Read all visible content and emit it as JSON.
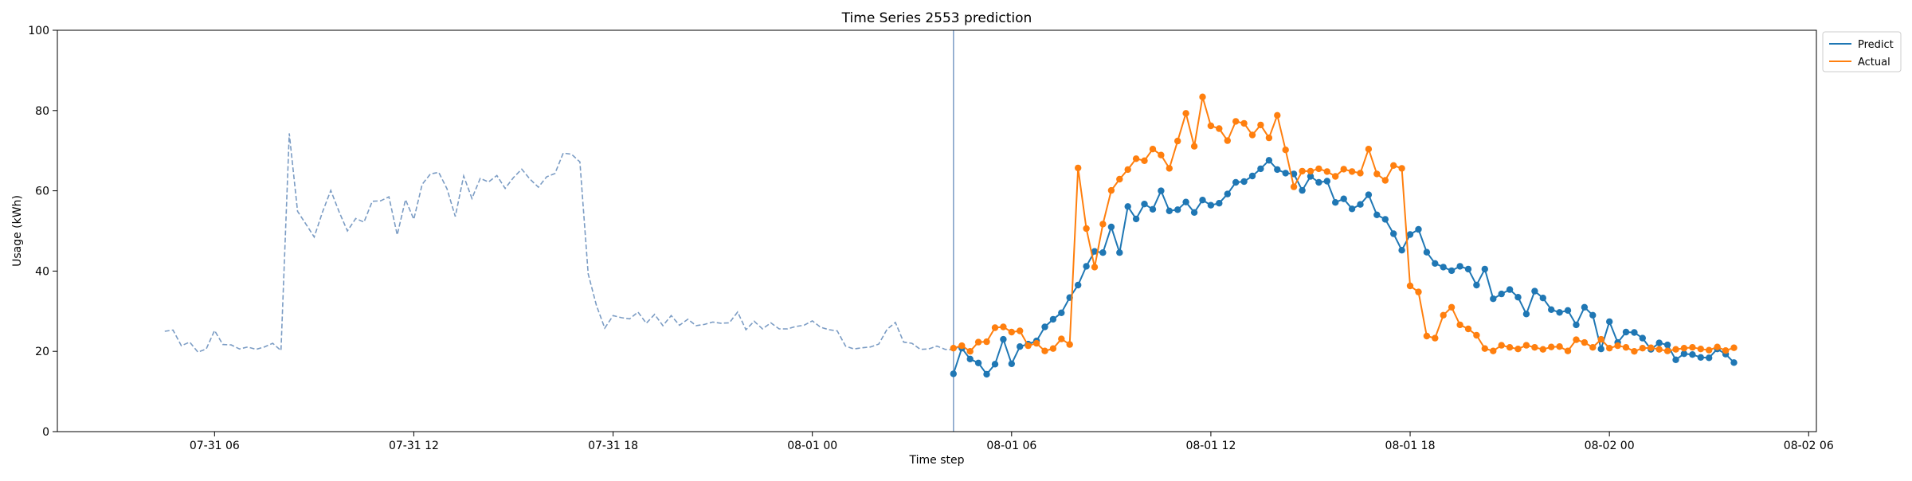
{
  "chart_data": {
    "type": "line",
    "title": "Time Series 2553 prediction",
    "xlabel": "Time step",
    "ylabel": "Usage (kWh)",
    "ylim": [
      0,
      100
    ],
    "xlim": [
      "07-31 01:16",
      "08-02 06:14"
    ],
    "yticks": [
      0,
      20,
      40,
      60,
      80,
      100
    ],
    "xticks": [
      {
        "at": "07-31 06:00",
        "label": "07-31 06"
      },
      {
        "at": "07-31 12:00",
        "label": "07-31 12"
      },
      {
        "at": "07-31 18:00",
        "label": "07-31 18"
      },
      {
        "at": "08-01 00:00",
        "label": "08-01 00"
      },
      {
        "at": "08-01 06:00",
        "label": "08-01 06"
      },
      {
        "at": "08-01 12:00",
        "label": "08-01 12"
      },
      {
        "at": "08-01 18:00",
        "label": "08-01 18"
      },
      {
        "at": "08-02 00:00",
        "label": "08-02 00"
      },
      {
        "at": "08-02 06:00",
        "label": "08-02 06"
      }
    ],
    "grid": false,
    "legend_position": "outside-top-right",
    "forecast_start": "08-01 04:15",
    "history": {
      "start": "07-31 04:30",
      "step_minutes": 15,
      "style": "dashed",
      "color": "#7b9cc4",
      "values": [
        25,
        25.3,
        21.4,
        22.3,
        19.8,
        20.6,
        25.2,
        21.7,
        21.6,
        20.6,
        21.1,
        20.5,
        21.1,
        22,
        20.2,
        74.3,
        54.9,
        51.7,
        48.5,
        54.7,
        60.1,
        54.8,
        50,
        53.1,
        52.2,
        57.4,
        57.5,
        58.5,
        49,
        57.8,
        52.9,
        61.6,
        64.2,
        64.6,
        60.5,
        53.6,
        63.7,
        58.1,
        63.1,
        62.2,
        63.8,
        60.6,
        63.3,
        65.4,
        62.9,
        60.9,
        63.5,
        64.3,
        69.4,
        69.1,
        67.2,
        39.3,
        31.4,
        25.8,
        28.9,
        28.4,
        28.1,
        29.8,
        27,
        29.2,
        26.4,
        28.9,
        26.5,
        28,
        26.4,
        26.7,
        27.3,
        27,
        27.1,
        29.8,
        25.4,
        27.5,
        25.6,
        27.1,
        25.6,
        25.6,
        26.2,
        26.5,
        27.6,
        26,
        25.4,
        25.1,
        21.3,
        20.6,
        20.9,
        21.1,
        21.8,
        25.5,
        27.2,
        22.3,
        22,
        20.5,
        20.6,
        21.3,
        20.5,
        20.4,
        21.5
      ]
    },
    "series": [
      {
        "name": "Predict",
        "color": "#1f77b4",
        "start": "08-01 04:15",
        "step_minutes": 15,
        "values": [
          14.4,
          20.8,
          18.1,
          17.1,
          14.3,
          16.8,
          23,
          16.9,
          21.2,
          21.8,
          22.6,
          26.1,
          28,
          29.6,
          33.4,
          36.5,
          41.2,
          44.9,
          44.6,
          51,
          44.6,
          56.1,
          53,
          56.7,
          55.4,
          60,
          55,
          55.3,
          57.2,
          54.6,
          57.7,
          56.4,
          56.9,
          59.2,
          62.1,
          62.3,
          63.7,
          65.5,
          67.6,
          65.3,
          64.4,
          64.2,
          60.1,
          63.6,
          62.1,
          62.4,
          57.1,
          58,
          55.5,
          56.6,
          59,
          54,
          52.9,
          49.3,
          45.2,
          49.1,
          50.4,
          44.7,
          41.9,
          41,
          40.1,
          41.2,
          40.5,
          36.5,
          40.5,
          33.1,
          34.3,
          35.4,
          33.5,
          29.3,
          35,
          33.3,
          30.4,
          29.7,
          30.2,
          26.6,
          31,
          29,
          20.6,
          27.4,
          22.2,
          24.8,
          24.7,
          23.3,
          20.5,
          22.1,
          21.6,
          17.9,
          19.4,
          19.2,
          18.5,
          18.4,
          20.6,
          19.3,
          17.2
        ]
      },
      {
        "name": "Actual",
        "color": "#ff7f0e",
        "start": "08-01 04:15",
        "step_minutes": 15,
        "values": [
          20.8,
          21.4,
          20,
          22.3,
          22.4,
          25.9,
          26.1,
          24.8,
          25.1,
          21.4,
          22,
          20.1,
          20.7,
          23.1,
          21.7,
          65.7,
          50.6,
          41,
          51.7,
          60.1,
          62.9,
          65.3,
          68,
          67.5,
          70.4,
          68.9,
          65.6,
          72.4,
          79.3,
          71.1,
          83.4,
          76.2,
          75.5,
          72.5,
          77.3,
          76.8,
          73.9,
          76.4,
          73.2,
          78.8,
          70.2,
          61,
          64.9,
          64.9,
          65.5,
          64.8,
          63.6,
          65.4,
          64.8,
          64.4,
          70.4,
          64.2,
          62.6,
          66.3,
          65.6,
          36.3,
          34.8,
          23.8,
          23.3,
          29,
          31,
          26.6,
          25.6,
          24,
          20.7,
          20.1,
          21.5,
          21,
          20.6,
          21.5,
          21,
          20.5,
          21.1,
          21.2,
          20.1,
          22.9,
          22.2,
          21,
          23,
          20.8,
          21.4,
          21,
          20,
          20.8,
          20.9,
          20.5,
          20.1,
          20.5,
          20.8,
          21,
          20.6,
          20.3,
          21.1,
          20.2,
          20.9
        ]
      }
    ]
  }
}
